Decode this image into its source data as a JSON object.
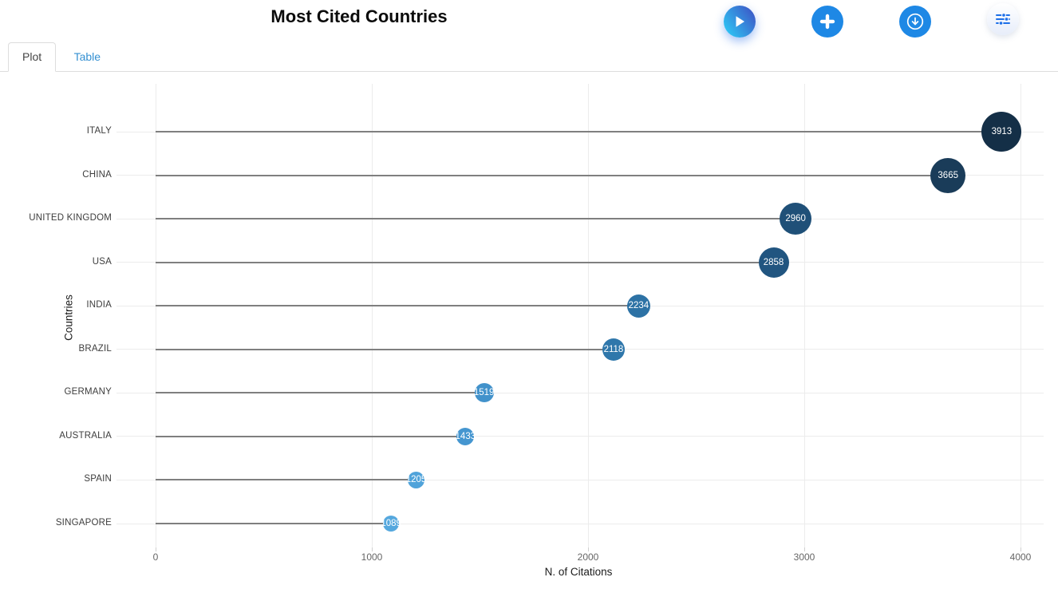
{
  "header": {
    "title": "Most Cited Countries",
    "buttons": [
      {
        "name": "run",
        "icon": "play-icon"
      },
      {
        "name": "add",
        "icon": "plus-icon"
      },
      {
        "name": "export",
        "icon": "download-circle-icon"
      },
      {
        "name": "filters",
        "icon": "sliders-icon"
      }
    ]
  },
  "tabs": [
    {
      "label": "Plot",
      "active": true
    },
    {
      "label": "Table",
      "active": false
    }
  ],
  "chart_data": {
    "type": "lollipop",
    "orientation": "horizontal",
    "title": "Most Cited Countries",
    "xlabel": "N. of Citations",
    "ylabel": "Countries",
    "xlim": [
      0,
      4000
    ],
    "x_ticks": [
      "0",
      "1000",
      "2000",
      "3000",
      "4000"
    ],
    "x_tick_values": [
      0,
      1000,
      2000,
      3000,
      4000
    ],
    "grid": true,
    "legend": false,
    "categories": [
      "ITALY",
      "CHINA",
      "UNITED KINGDOM",
      "USA",
      "INDIA",
      "BRAZIL",
      "GERMANY",
      "AUSTRALIA",
      "SPAIN",
      "SINGAPORE"
    ],
    "values": [
      3913,
      3665,
      2960,
      2858,
      2234,
      2118,
      1519,
      1433,
      1205,
      1089
    ],
    "point_colors": [
      "#142f47",
      "#1a3c59",
      "#1f5078",
      "#215580",
      "#2d72a5",
      "#2f77ab",
      "#4292cb",
      "#4596d0",
      "#50a3da",
      "#55a8de"
    ],
    "point_radii": [
      25,
      22,
      20,
      19,
      14.5,
      14,
      12,
      11,
      10.5,
      10
    ],
    "stem_color": "#7f7f7f",
    "grid_color": "#ececec",
    "row_line_color": "#ececec"
  },
  "colors": {
    "accent_blue": "#1e88e5",
    "play_gradient_start": "#2ec5f4",
    "play_gradient_end": "#3d52c5",
    "tab_link": "#3490d2",
    "sliders_icon": "#1d6fe8"
  }
}
